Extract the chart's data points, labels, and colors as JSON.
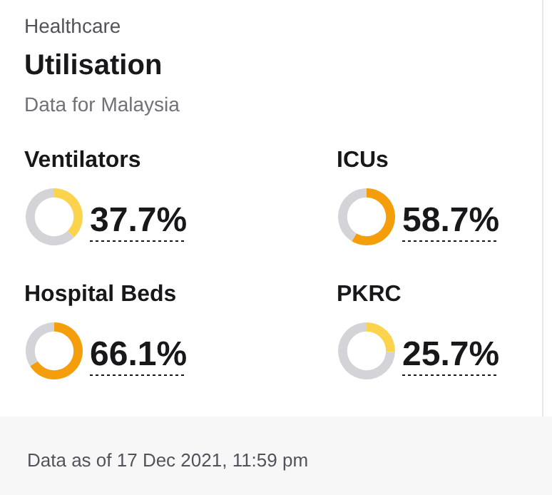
{
  "chart_data": [
    {
      "type": "other",
      "title": "Utilisation",
      "subtitle": "Data for Malaysia",
      "annotations": [
        "Healthcare",
        "Data as of 17 Dec 2021, 11:59 pm"
      ]
    },
    {
      "type": "donut",
      "title": "Ventilators",
      "categories": [
        null,
        null
      ],
      "values": [
        37.7,
        62.3
      ],
      "colors": [
        "#fcd34d",
        "#d4d4d8"
      ],
      "value_labels": [
        "37.7%",
        null
      ]
    },
    {
      "type": "donut",
      "title": "ICUs",
      "categories": [
        null,
        null
      ],
      "values": [
        58.7,
        41.3
      ],
      "colors": [
        "#f59e0b",
        "#d4d4d8"
      ],
      "value_labels": [
        "58.7%",
        null
      ]
    },
    {
      "type": "donut",
      "title": "Hospital Beds",
      "categories": [
        null,
        null
      ],
      "values": [
        66.1,
        33.9
      ],
      "colors": [
        "#f59e0b",
        "#d4d4d8"
      ],
      "value_labels": [
        "66.1%",
        null
      ]
    },
    {
      "type": "donut",
      "title": "PKRC",
      "categories": [
        null,
        null
      ],
      "values": [
        25.7,
        74.3
      ],
      "colors": [
        "#fcd34d",
        "#d4d4d8"
      ],
      "value_labels": [
        "25.7%",
        null
      ]
    }
  ]
}
